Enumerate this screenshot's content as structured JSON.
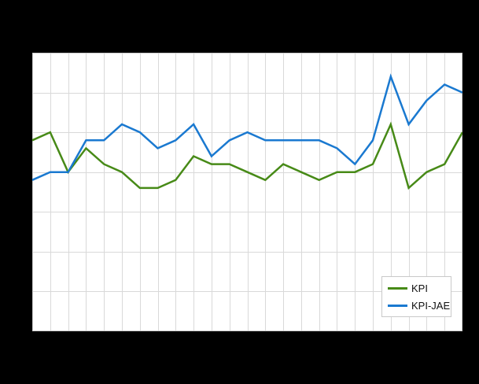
{
  "canvas": {
    "background_color": "#000000",
    "plot_background_color": "#ffffff",
    "gridline_color": "#d9d9d9",
    "plot_border_color": "#cccccc"
  },
  "chart_data": {
    "type": "line",
    "title": "",
    "xlabel": "",
    "ylabel": "",
    "x": [
      0,
      1,
      2,
      3,
      4,
      5,
      6,
      7,
      8,
      9,
      10,
      11,
      12,
      13,
      14,
      15,
      16,
      17,
      18,
      19,
      20,
      21,
      22,
      23,
      24
    ],
    "xlim": [
      0,
      24
    ],
    "ylim": [
      0,
      3.5
    ],
    "y_gridline_step": 0.5,
    "x_gridline_step": 1,
    "grid": "on",
    "axis_tick_labels_visible": false,
    "legend_position": "inside-bottom-right",
    "series": [
      {
        "name": "KPI",
        "color": "#478a17",
        "values": [
          2.4,
          2.5,
          2.0,
          2.3,
          2.1,
          2.0,
          1.8,
          1.8,
          1.9,
          2.2,
          2.1,
          2.1,
          2.0,
          1.9,
          2.1,
          2.0,
          1.9,
          2.0,
          2.0,
          2.1,
          2.6,
          1.8,
          2.0,
          2.1,
          2.5
        ]
      },
      {
        "name": "KPI-JAE",
        "color": "#1a79d0",
        "values": [
          1.9,
          2.0,
          2.0,
          2.4,
          2.4,
          2.6,
          2.5,
          2.3,
          2.4,
          2.6,
          2.2,
          2.4,
          2.5,
          2.4,
          2.4,
          2.4,
          2.4,
          2.3,
          2.1,
          2.4,
          3.2,
          2.6,
          2.9,
          3.1,
          3.0
        ]
      }
    ]
  },
  "legend": {
    "items": [
      {
        "label": "KPI"
      },
      {
        "label": "KPI-JAE"
      }
    ]
  }
}
